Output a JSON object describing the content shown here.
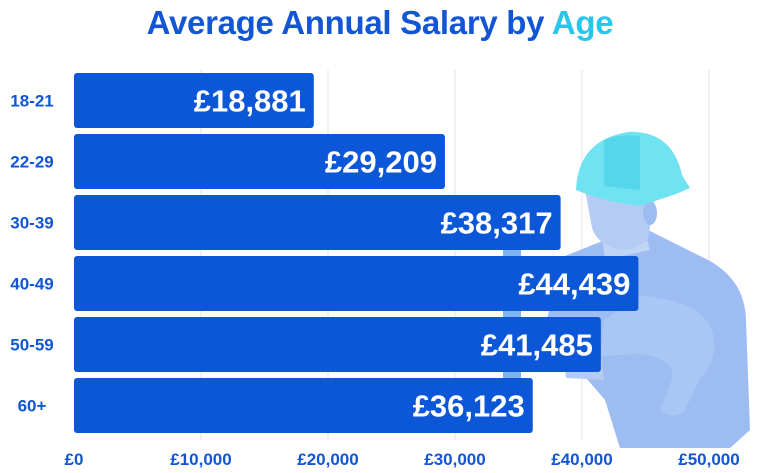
{
  "colors": {
    "title": "#1256d6",
    "title_accent": "#27c6ea",
    "bar": "#0b57d7",
    "bar_label": "#ffffff",
    "tick_label": "#1256d6",
    "grid": "#dde3ee"
  },
  "illustration": {
    "icon": "construction-worker-with-hard-hat",
    "helmet_color": "#6fe3f2",
    "body_color": "#9dbcf1"
  },
  "chart_data": {
    "type": "bar",
    "orientation": "horizontal",
    "title": "Average Annual Salary by Age",
    "title_main": "Average Annual Salary by",
    "title_accent": "Age",
    "categories": [
      "18-21",
      "22-29",
      "30-39",
      "40-49",
      "50-59",
      "60+"
    ],
    "values": [
      18881,
      29209,
      38317,
      44439,
      41485,
      36123
    ],
    "value_labels": [
      "£18,881",
      "£29,209",
      "£38,317",
      "£44,439",
      "£41,485",
      "£36,123"
    ],
    "xlim": [
      0,
      50000
    ],
    "xticks": [
      0,
      10000,
      20000,
      30000,
      40000,
      50000
    ],
    "xtick_labels": [
      "£0",
      "£10,000",
      "£20,000",
      "£30,000",
      "£40,000",
      "£50,000"
    ],
    "xlabel": "",
    "ylabel": "",
    "grid": true,
    "legend": "none"
  }
}
